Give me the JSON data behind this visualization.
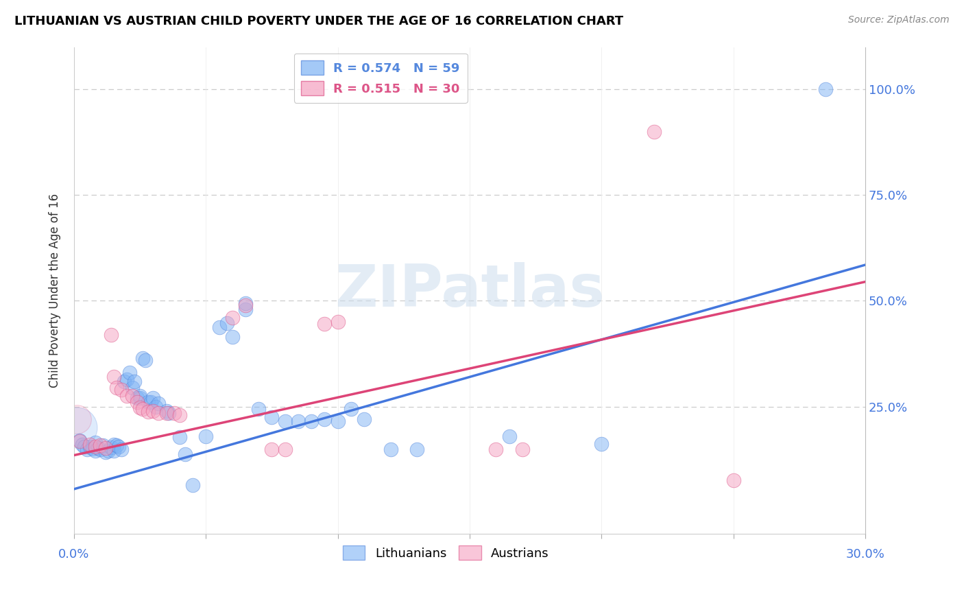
{
  "title": "LITHUANIAN VS AUSTRIAN CHILD POVERTY UNDER THE AGE OF 16 CORRELATION CHART",
  "source": "Source: ZipAtlas.com",
  "ylabel": "Child Poverty Under the Age of 16",
  "xmin": 0.0,
  "xmax": 0.3,
  "ymin": -0.05,
  "ymax": 1.1,
  "blue_color": "#7eb3f5",
  "pink_color": "#f5a0c0",
  "blue_edge_color": "#5588dd",
  "pink_edge_color": "#dd5588",
  "blue_line_color": "#4477dd",
  "pink_line_color": "#dd4477",
  "watermark": "ZIPatlas",
  "legend_entries": [
    {
      "label_r": "R = 0.574",
      "label_n": "N = 59",
      "color": "#7eb3f5",
      "edge": "#5588dd"
    },
    {
      "label_r": "R = 0.515",
      "label_n": "N = 30",
      "color": "#f5a0c0",
      "edge": "#dd5588"
    }
  ],
  "lit_line_x": [
    0.0,
    0.3
  ],
  "lit_line_y": [
    0.055,
    0.585
  ],
  "aut_line_x": [
    0.0,
    0.3
  ],
  "aut_line_y": [
    0.135,
    0.545
  ],
  "lit_data": [
    [
      0.002,
      0.17
    ],
    [
      0.003,
      0.16
    ],
    [
      0.004,
      0.155
    ],
    [
      0.005,
      0.148
    ],
    [
      0.006,
      0.155
    ],
    [
      0.007,
      0.15
    ],
    [
      0.008,
      0.145
    ],
    [
      0.008,
      0.165
    ],
    [
      0.009,
      0.152
    ],
    [
      0.01,
      0.148
    ],
    [
      0.011,
      0.158
    ],
    [
      0.012,
      0.143
    ],
    [
      0.013,
      0.145
    ],
    [
      0.014,
      0.153
    ],
    [
      0.015,
      0.16
    ],
    [
      0.015,
      0.145
    ],
    [
      0.016,
      0.158
    ],
    [
      0.017,
      0.155
    ],
    [
      0.018,
      0.148
    ],
    [
      0.019,
      0.31
    ],
    [
      0.02,
      0.315
    ],
    [
      0.021,
      0.33
    ],
    [
      0.022,
      0.295
    ],
    [
      0.023,
      0.31
    ],
    [
      0.024,
      0.27
    ],
    [
      0.025,
      0.27
    ],
    [
      0.025,
      0.275
    ],
    [
      0.026,
      0.365
    ],
    [
      0.027,
      0.36
    ],
    [
      0.028,
      0.26
    ],
    [
      0.029,
      0.26
    ],
    [
      0.03,
      0.27
    ],
    [
      0.031,
      0.25
    ],
    [
      0.032,
      0.258
    ],
    [
      0.035,
      0.24
    ],
    [
      0.036,
      0.235
    ],
    [
      0.04,
      0.178
    ],
    [
      0.042,
      0.138
    ],
    [
      0.045,
      0.065
    ],
    [
      0.05,
      0.18
    ],
    [
      0.055,
      0.438
    ],
    [
      0.058,
      0.448
    ],
    [
      0.06,
      0.415
    ],
    [
      0.065,
      0.48
    ],
    [
      0.065,
      0.495
    ],
    [
      0.07,
      0.245
    ],
    [
      0.075,
      0.225
    ],
    [
      0.08,
      0.215
    ],
    [
      0.085,
      0.215
    ],
    [
      0.09,
      0.215
    ],
    [
      0.095,
      0.22
    ],
    [
      0.1,
      0.215
    ],
    [
      0.105,
      0.245
    ],
    [
      0.11,
      0.22
    ],
    [
      0.12,
      0.148
    ],
    [
      0.13,
      0.148
    ],
    [
      0.165,
      0.18
    ],
    [
      0.2,
      0.162
    ],
    [
      0.285,
      1.0
    ]
  ],
  "aut_data": [
    [
      0.002,
      0.168
    ],
    [
      0.006,
      0.16
    ],
    [
      0.008,
      0.155
    ],
    [
      0.01,
      0.158
    ],
    [
      0.012,
      0.152
    ],
    [
      0.014,
      0.42
    ],
    [
      0.015,
      0.32
    ],
    [
      0.016,
      0.295
    ],
    [
      0.018,
      0.29
    ],
    [
      0.02,
      0.275
    ],
    [
      0.022,
      0.275
    ],
    [
      0.024,
      0.26
    ],
    [
      0.025,
      0.248
    ],
    [
      0.026,
      0.245
    ],
    [
      0.028,
      0.238
    ],
    [
      0.03,
      0.24
    ],
    [
      0.032,
      0.235
    ],
    [
      0.035,
      0.235
    ],
    [
      0.038,
      0.235
    ],
    [
      0.04,
      0.23
    ],
    [
      0.06,
      0.46
    ],
    [
      0.065,
      0.49
    ],
    [
      0.075,
      0.148
    ],
    [
      0.08,
      0.148
    ],
    [
      0.095,
      0.445
    ],
    [
      0.1,
      0.45
    ],
    [
      0.16,
      0.148
    ],
    [
      0.17,
      0.148
    ],
    [
      0.22,
      0.9
    ],
    [
      0.25,
      0.075
    ]
  ]
}
